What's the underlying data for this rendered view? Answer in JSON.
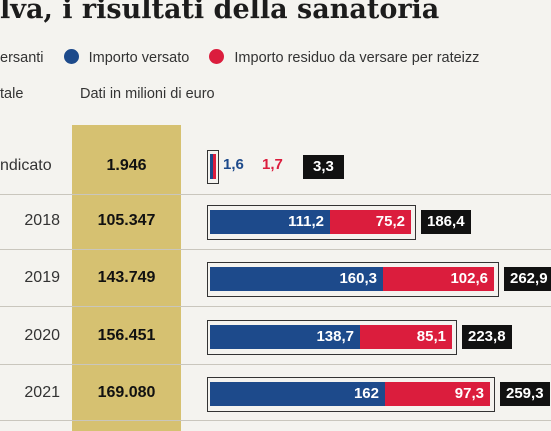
{
  "header": {
    "title": "lva, i risultati della sanatoria",
    "legend_left": "ersanti",
    "legend_blue": "Importo versato",
    "legend_red": "Importo residuo da versare per rateizz",
    "sub_left": "tale",
    "sub_right": "Dati in milioni di euro"
  },
  "colors": {
    "blue": "#1d4a8b",
    "red": "#db1d3d",
    "black": "#111111",
    "gold": "#d6c171"
  },
  "chart_data": {
    "type": "bar",
    "stacked": true,
    "categories": [
      "ndicato",
      "2018",
      "2019",
      "2020",
      "2021"
    ],
    "totals_label": [
      "1.946",
      "105.347",
      "143.749",
      "156.451",
      "169.080"
    ],
    "series": [
      {
        "name": "Importo versato",
        "values": [
          1.6,
          111.2,
          160.3,
          138.7,
          162
        ],
        "labels": [
          "1,6",
          "111,2",
          "160,3",
          "138,7",
          "162"
        ]
      },
      {
        "name": "Importo residuo da versare per rateizz",
        "values": [
          1.7,
          75.2,
          102.6,
          85.1,
          97.3
        ],
        "labels": [
          "1,7",
          "75,2",
          "102,6",
          "85,1",
          "97,3"
        ]
      }
    ],
    "sum_labels": [
      "3,3",
      "186,4",
      "262,9",
      "223,8",
      "259,3"
    ],
    "unit": "Dati in milioni di euro"
  }
}
